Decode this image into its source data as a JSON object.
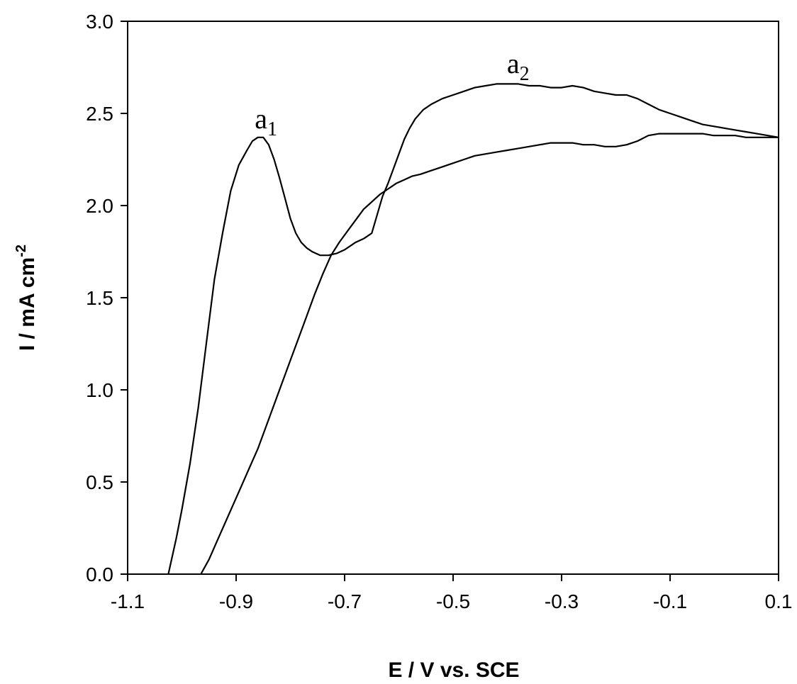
{
  "chart_data": {
    "type": "line",
    "title": "",
    "xlabel": "E / V vs. SCE",
    "ylabel_main": "I / mA cm",
    "ylabel_exp": "-2",
    "xlim": [
      -1.1,
      0.1
    ],
    "ylim": [
      0.0,
      3.0
    ],
    "x_ticks": [
      -1.1,
      -0.9,
      -0.7,
      -0.5,
      -0.3,
      -0.1,
      0.1
    ],
    "x_tick_labels": [
      "-1.1",
      "-0.9",
      "-0.7",
      "-0.5",
      "-0.3",
      "-0.1",
      "0.1"
    ],
    "y_ticks": [
      0.0,
      0.5,
      1.0,
      1.5,
      2.0,
      2.5,
      3.0
    ],
    "y_tick_labels": [
      "0.0",
      "0.5",
      "1.0",
      "1.5",
      "2.0",
      "2.5",
      "3.0"
    ],
    "grid": false,
    "annotations": [
      {
        "base": "a",
        "sub": "1",
        "x": -0.845,
        "y": 2.42
      },
      {
        "base": "a",
        "sub": "2",
        "x": -0.38,
        "y": 2.72
      }
    ],
    "series": [
      {
        "x": [
          -1.025,
          -1.01,
          -1.0,
          -0.985,
          -0.97,
          -0.955,
          -0.94,
          -0.925,
          -0.91,
          -0.895,
          -0.88,
          -0.87,
          -0.86,
          -0.85,
          -0.84,
          -0.83,
          -0.82,
          -0.81,
          -0.8,
          -0.79,
          -0.78,
          -0.77,
          -0.76,
          -0.745,
          -0.73,
          -0.715,
          -0.7,
          -0.69,
          -0.68,
          -0.665,
          -0.65,
          -0.645,
          -0.64,
          -0.635,
          -0.63,
          -0.62,
          -0.61,
          -0.6,
          -0.59,
          -0.58,
          -0.57,
          -0.555,
          -0.54,
          -0.52,
          -0.5,
          -0.48,
          -0.46,
          -0.44,
          -0.42,
          -0.4,
          -0.38,
          -0.36,
          -0.34,
          -0.32,
          -0.3,
          -0.28,
          -0.26,
          -0.24,
          -0.22,
          -0.2,
          -0.18,
          -0.16,
          -0.14,
          -0.12,
          -0.1,
          -0.08,
          -0.06,
          -0.04,
          -0.02,
          0.0,
          0.02,
          0.04,
          0.06,
          0.08,
          0.1
        ],
        "y": [
          0.0,
          0.2,
          0.35,
          0.6,
          0.9,
          1.25,
          1.6,
          1.85,
          2.08,
          2.22,
          2.3,
          2.35,
          2.37,
          2.37,
          2.33,
          2.25,
          2.15,
          2.04,
          1.93,
          1.85,
          1.8,
          1.77,
          1.75,
          1.73,
          1.73,
          1.74,
          1.76,
          1.78,
          1.8,
          1.82,
          1.85,
          1.9,
          1.95,
          2.0,
          2.05,
          2.12,
          2.2,
          2.28,
          2.36,
          2.42,
          2.47,
          2.52,
          2.55,
          2.58,
          2.6,
          2.62,
          2.64,
          2.65,
          2.66,
          2.66,
          2.66,
          2.65,
          2.65,
          2.64,
          2.64,
          2.65,
          2.64,
          2.62,
          2.61,
          2.6,
          2.6,
          2.58,
          2.55,
          2.52,
          2.5,
          2.48,
          2.46,
          2.44,
          2.43,
          2.42,
          2.41,
          2.4,
          2.39,
          2.38,
          2.37
        ]
      },
      {
        "x": [
          -0.965,
          -0.95,
          -0.935,
          -0.92,
          -0.905,
          -0.89,
          -0.875,
          -0.86,
          -0.845,
          -0.83,
          -0.815,
          -0.8,
          -0.785,
          -0.77,
          -0.755,
          -0.74,
          -0.725,
          -0.71,
          -0.695,
          -0.68,
          -0.665,
          -0.65,
          -0.635,
          -0.62,
          -0.605,
          -0.59,
          -0.575,
          -0.56,
          -0.54,
          -0.52,
          -0.5,
          -0.48,
          -0.46,
          -0.44,
          -0.42,
          -0.4,
          -0.38,
          -0.36,
          -0.34,
          -0.32,
          -0.3,
          -0.28,
          -0.26,
          -0.24,
          -0.22,
          -0.2,
          -0.18,
          -0.16,
          -0.14,
          -0.12,
          -0.1,
          -0.08,
          -0.06,
          -0.04,
          -0.02,
          0.0,
          0.02,
          0.04,
          0.06,
          0.08,
          0.1
        ],
        "y": [
          0.0,
          0.08,
          0.18,
          0.28,
          0.38,
          0.48,
          0.58,
          0.68,
          0.8,
          0.92,
          1.04,
          1.16,
          1.28,
          1.4,
          1.52,
          1.63,
          1.73,
          1.8,
          1.86,
          1.92,
          1.98,
          2.02,
          2.06,
          2.09,
          2.12,
          2.14,
          2.16,
          2.17,
          2.19,
          2.21,
          2.23,
          2.25,
          2.27,
          2.28,
          2.29,
          2.3,
          2.31,
          2.32,
          2.33,
          2.34,
          2.34,
          2.34,
          2.33,
          2.33,
          2.32,
          2.32,
          2.33,
          2.35,
          2.38,
          2.39,
          2.39,
          2.39,
          2.39,
          2.39,
          2.38,
          2.38,
          2.38,
          2.37,
          2.37,
          2.37,
          2.37
        ]
      }
    ]
  }
}
